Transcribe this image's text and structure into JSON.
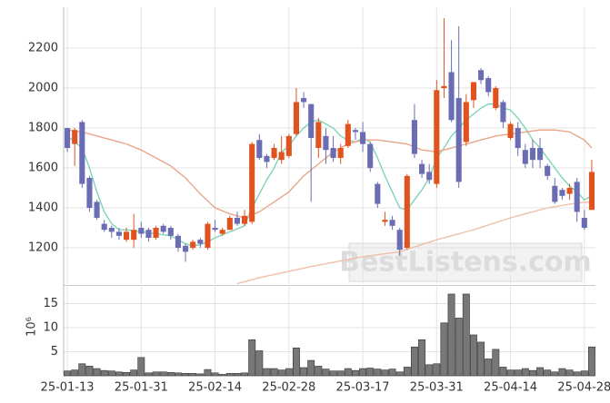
{
  "chart_data": {
    "type": "candlestick",
    "categories": [
      "25-01-13",
      null,
      null,
      null,
      null,
      null,
      null,
      null,
      null,
      null,
      "25-01-31",
      null,
      null,
      null,
      null,
      null,
      null,
      null,
      null,
      null,
      "25-02-14",
      null,
      null,
      null,
      null,
      null,
      null,
      null,
      null,
      null,
      "25-02-28",
      null,
      null,
      null,
      null,
      null,
      null,
      null,
      null,
      null,
      "25-03-17",
      null,
      null,
      null,
      null,
      null,
      null,
      null,
      null,
      null,
      "25-03-31",
      null,
      null,
      null,
      null,
      null,
      null,
      null,
      null,
      null,
      "25-04-14",
      null,
      null,
      null,
      null,
      null,
      null,
      null,
      null,
      null,
      "25-04-28",
      null
    ],
    "open": [
      1800,
      1720,
      1830,
      1550,
      1430,
      1320,
      1300,
      1280,
      1240,
      1240,
      1300,
      1290,
      1250,
      1310,
      1300,
      1260,
      1210,
      1200,
      1240,
      1200,
      1300,
      1270,
      1290,
      1350,
      1320,
      1330,
      1740,
      1660,
      1650,
      1640,
      1660,
      1770,
      1950,
      1920,
      1700,
      1760,
      1700,
      1650,
      1710,
      1790,
      1780,
      1720,
      1520,
      1330,
      1340,
      1290,
      1200,
      1840,
      1620,
      1580,
      1520,
      2000,
      2080,
      1950,
      1730,
      1940,
      2090,
      2050,
      1900,
      1930,
      1750,
      1800,
      1690,
      1700,
      1700,
      1610,
      1510,
      1490,
      1470,
      1530,
      1350,
      1390
    ],
    "high": [
      1800,
      1800,
      1840,
      1560,
      1440,
      1340,
      1310,
      1300,
      1300,
      1370,
      1330,
      1300,
      1310,
      1320,
      1310,
      1270,
      1220,
      1240,
      1250,
      1330,
      1340,
      1300,
      1360,
      1380,
      1390,
      1730,
      1770,
      1670,
      1720,
      1760,
      1770,
      2000,
      1980,
      1920,
      1850,
      1800,
      1760,
      1720,
      1840,
      1800,
      1830,
      1730,
      1530,
      1380,
      1360,
      1300,
      1570,
      1920,
      1640,
      1620,
      2040,
      2350,
      2240,
      2310,
      1970,
      2030,
      2100,
      2060,
      2010,
      1940,
      1830,
      1830,
      1720,
      1740,
      1750,
      1620,
      1550,
      1500,
      1520,
      1550,
      1390,
      1640
    ],
    "low": [
      1680,
      1610,
      1500,
      1380,
      1340,
      1280,
      1250,
      1240,
      1230,
      1200,
      1250,
      1230,
      1240,
      1270,
      1240,
      1180,
      1130,
      1190,
      1200,
      1190,
      1280,
      1260,
      1290,
      1310,
      1310,
      1320,
      1640,
      1600,
      1640,
      1620,
      1650,
      1760,
      1900,
      1430,
      1650,
      1620,
      1630,
      1620,
      1700,
      1740,
      1680,
      1580,
      1400,
      1310,
      1290,
      1160,
      1190,
      1650,
      1550,
      1520,
      1500,
      1950,
      1830,
      1500,
      1710,
      1900,
      2020,
      1960,
      1890,
      1800,
      1740,
      1660,
      1600,
      1600,
      1600,
      1540,
      1420,
      1440,
      1440,
      1330,
      1290,
      1390
    ],
    "close": [
      1700,
      1790,
      1520,
      1400,
      1350,
      1290,
      1280,
      1260,
      1280,
      1290,
      1270,
      1250,
      1300,
      1280,
      1260,
      1200,
      1180,
      1230,
      1220,
      1320,
      1290,
      1290,
      1350,
      1320,
      1360,
      1720,
      1650,
      1630,
      1700,
      1680,
      1760,
      1930,
      1930,
      1750,
      1830,
      1690,
      1650,
      1700,
      1820,
      1780,
      1720,
      1600,
      1420,
      1340,
      1310,
      1190,
      1560,
      1670,
      1570,
      1540,
      1990,
      2010,
      1840,
      1530,
      1930,
      2030,
      2040,
      1980,
      2000,
      1830,
      1820,
      1700,
      1620,
      1640,
      1640,
      1560,
      1430,
      1460,
      1500,
      1380,
      1300,
      1580
    ],
    "up_color": "#e0521e",
    "down_color": "#6a6db3",
    "series": [
      {
        "color": "#7fd3b8",
        "values": [
          1760,
          1730,
          1700,
          1600,
          1480,
          1380,
          1320,
          1290,
          1290,
          1285,
          1280,
          1275,
          1270,
          1265,
          1260,
          1240,
          1220,
          1210,
          1215,
          1230,
          1250,
          1265,
          1280,
          1295,
          1310,
          1400,
          1470,
          1540,
          1600,
          1680,
          1710,
          1760,
          1800,
          1830,
          1840,
          1820,
          1800,
          1760,
          1740,
          1730,
          1750,
          1730,
          1650,
          1560,
          1480,
          1400,
          1390,
          1440,
          1490,
          1550,
          1650,
          1700,
          1760,
          1800,
          1840,
          1870,
          1900,
          1920,
          1920,
          1900,
          1890,
          1850,
          1800,
          1740,
          1700,
          1650,
          1600,
          1550,
          1510,
          1480,
          1440,
          1460
        ]
      },
      {
        "color": "#eaa58a",
        "values": [
          1790,
          1785,
          1780,
          1770,
          1760,
          1750,
          1740,
          1730,
          1720,
          1705,
          1690,
          1670,
          1650,
          1630,
          1610,
          1580,
          1550,
          1510,
          1470,
          1435,
          1400,
          1385,
          1370,
          1360,
          1350,
          1365,
          1380,
          1405,
          1430,
          1455,
          1480,
          1520,
          1560,
          1590,
          1620,
          1650,
          1680,
          1700,
          1720,
          1730,
          1740,
          1740,
          1740,
          1735,
          1730,
          1725,
          1720,
          1705,
          1690,
          1685,
          1680,
          1690,
          1700,
          1710,
          1720,
          1730,
          1740,
          1750,
          1760,
          1765,
          1770,
          1775,
          1780,
          1785,
          1790,
          1790,
          1790,
          1785,
          1780,
          1760,
          1740,
          1700
        ]
      },
      {
        "color": "#f0c0aa",
        "values": [
          null,
          null,
          null,
          null,
          null,
          null,
          null,
          null,
          null,
          null,
          null,
          null,
          null,
          null,
          null,
          null,
          null,
          null,
          null,
          null,
          null,
          null,
          null,
          1020,
          1030,
          1040,
          1050,
          1058,
          1066,
          1074,
          1082,
          1090,
          1098,
          1106,
          1113,
          1120,
          1127,
          1134,
          1141,
          1148,
          1155,
          1160,
          1165,
          1170,
          1175,
          1180,
          1192,
          1204,
          1216,
          1228,
          1240,
          1250,
          1260,
          1270,
          1280,
          1290,
          1302,
          1314,
          1326,
          1338,
          1350,
          1360,
          1370,
          1380,
          1390,
          1400,
          1406,
          1412,
          1418,
          1424,
          1428,
          1430
        ]
      }
    ],
    "ylim": [
      1018,
      2405
    ],
    "yticks": [
      1200,
      1400,
      1600,
      1800,
      2000,
      2200
    ],
    "volume": [
      1,
      1.2,
      2.5,
      2,
      1.5,
      1.1,
      1,
      0.8,
      0.7,
      1.2,
      3.8,
      0.6,
      0.8,
      0.8,
      0.7,
      0.6,
      0.5,
      0.5,
      0.4,
      1.3,
      0.6,
      0.3,
      0.5,
      0.5,
      0.6,
      7.5,
      5.2,
      1.5,
      1.5,
      1.2,
      1.5,
      5.8,
      1.7,
      3.2,
      2,
      1.4,
      1,
      1,
      1.5,
      1.1,
      1.5,
      1.6,
      1.4,
      1.2,
      1.4,
      0.8,
      1.8,
      6,
      7.5,
      2.3,
      2.5,
      11,
      17,
      12,
      17,
      8.5,
      7,
      3.5,
      5.5,
      1.8,
      1.2,
      1.2,
      1.5,
      1.1,
      1.7,
      1.2,
      0.8,
      1.5,
      1.2,
      0.8,
      1,
      6
    ],
    "volume_color": "#777777",
    "volume_label": "10⁶",
    "volume_ylim": [
      0,
      18.5
    ],
    "volume_yticks": [
      5,
      10,
      15
    ],
    "grid": true,
    "watermark": "BestListens.com"
  }
}
